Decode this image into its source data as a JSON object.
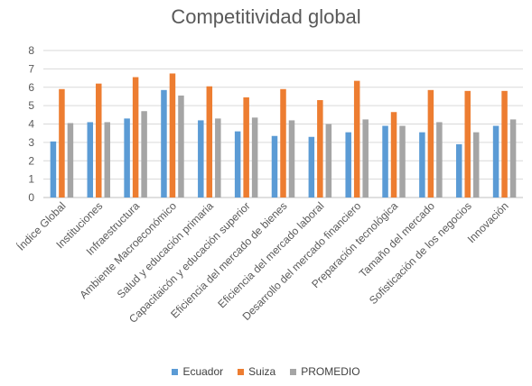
{
  "chart_data": {
    "type": "bar",
    "title": "Competitividad global",
    "xlabel": "",
    "ylabel": "",
    "ylim": [
      0,
      8
    ],
    "yticks": [
      "0",
      "1",
      "2",
      "3",
      "4",
      "5",
      "6",
      "7",
      "8"
    ],
    "grid": "horizontal",
    "legend_position": "bottom",
    "categories": [
      "Índice Global",
      "Instituciones",
      "Infraestructura",
      "Ambiente Macroeconómico",
      "Salud y educación primaria",
      "Capacitaicón y educación superior",
      "Eficiencia del mercado de bienes",
      "Eficiencia del mercado laboral",
      "Desarrollo del mercado financiero",
      "Preparación tecnológica",
      "Tamaño del mercado",
      "Sofisticación de los negocios",
      "Innovación"
    ],
    "series": [
      {
        "name": "Ecuador",
        "color": "#5B9BD5",
        "values": [
          3.05,
          4.1,
          4.3,
          5.85,
          4.2,
          3.6,
          3.35,
          3.3,
          3.55,
          3.9,
          3.55,
          2.9,
          3.9
        ]
      },
      {
        "name": "Suiza",
        "color": "#ED7D31",
        "values": [
          5.9,
          6.2,
          6.55,
          6.75,
          6.05,
          5.45,
          5.9,
          5.3,
          6.35,
          4.65,
          5.85,
          5.8,
          5.8
        ]
      },
      {
        "name": "PROMEDIO",
        "color": "#A5A5A5",
        "values": [
          4.05,
          4.1,
          4.7,
          5.55,
          4.3,
          4.35,
          4.2,
          4.0,
          4.25,
          3.9,
          4.1,
          3.55,
          4.25
        ]
      }
    ]
  }
}
